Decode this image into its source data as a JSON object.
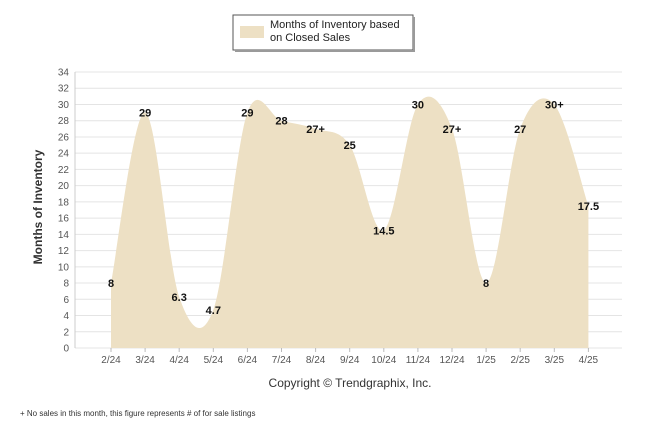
{
  "legend": {
    "line1": "Months of Inventory based",
    "line2": "on Closed Sales"
  },
  "copyright": "Copyright © Trendgraphix, Inc.",
  "footnote": "+ No sales in this month, this figure represents # of for sale listings",
  "colors": {
    "area_fill": "#ede0c4",
    "grid": "#e4e4e4",
    "legend_border": "#555555"
  },
  "chart_data": {
    "type": "area",
    "title": "",
    "xlabel": "",
    "ylabel": "Months of Inventory",
    "ylim": [
      0,
      34
    ],
    "yticks": [
      "0",
      "2",
      "4",
      "6",
      "8",
      "10",
      "12",
      "14",
      "16",
      "18",
      "20",
      "22",
      "24",
      "26",
      "28",
      "30",
      "32",
      "34"
    ],
    "grid": true,
    "legend_position": "top-center",
    "categories": [
      "2/24",
      "3/24",
      "4/24",
      "5/24",
      "6/24",
      "7/24",
      "8/24",
      "9/24",
      "10/24",
      "11/24",
      "12/24",
      "1/25",
      "2/25",
      "3/25",
      "4/25"
    ],
    "series": [
      {
        "name": "Months of Inventory based on Closed Sales",
        "values": [
          8,
          29,
          6.3,
          4.7,
          29,
          28,
          27,
          25,
          14.5,
          30,
          27,
          8,
          27,
          30,
          17.5
        ],
        "labels": [
          "8",
          "29",
          "6.3",
          "4.7",
          "29",
          "28",
          "27+",
          "25",
          "14.5",
          "30",
          "27+",
          "8",
          "27",
          "30+",
          "17.5"
        ]
      }
    ]
  }
}
